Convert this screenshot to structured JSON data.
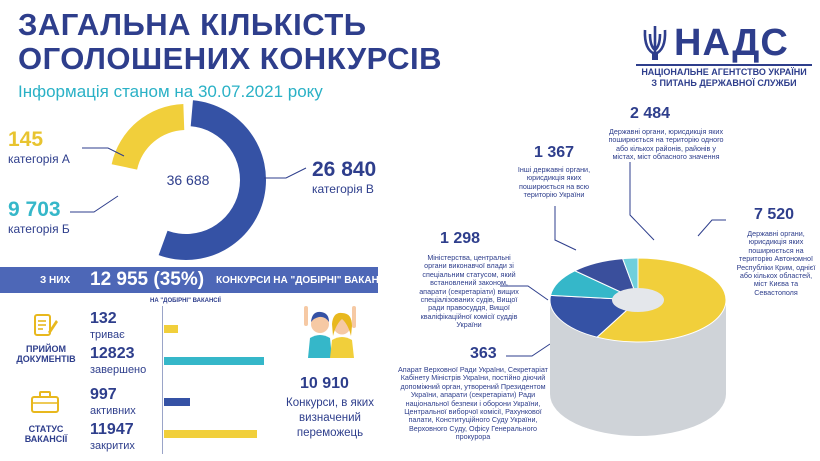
{
  "header": {
    "title_line1": "ЗАГАЛЬНА КІЛЬКІСТЬ",
    "title_line2": "ОГОЛОШЕНИХ КОНКУРСІВ",
    "subtitle": "Інформація станом на 30.07.2021 року"
  },
  "logo": {
    "name": "НАДС",
    "line1": "НАЦІОНАЛЬНЕ АГЕНТСТВО УКРАЇНИ",
    "line2": "З ПИТАНЬ ДЕРЖАВНОЇ СЛУЖБИ"
  },
  "donut": {
    "total": "36 688",
    "categories": [
      {
        "value_text": "145",
        "label": "категорія А",
        "value": 145,
        "color": "#f1cf3b"
      },
      {
        "value_text": "9 703",
        "label": "категорія Б",
        "value": 9703,
        "color": "#35b7c9"
      },
      {
        "value_text": "26 840",
        "label": "категорія В",
        "value": 26840,
        "color": "#3552a5"
      }
    ]
  },
  "band": {
    "prefix": "з них",
    "value": "12 955 (35%)",
    "text": "конкурси на \"добірні\" вакансії"
  },
  "left_bottom": {
    "header_small": "на \"добірні\" вакансії",
    "intake": {
      "label_line1": "ПРИЙОМ",
      "label_line2": "ДОКУМЕНТІВ",
      "rows": [
        {
          "value": "132",
          "label": "триває",
          "bar_fraction": 0.14,
          "color": "#f1cf3b"
        },
        {
          "value": "12823",
          "label": "завершено",
          "bar_fraction": 1.0,
          "color": "#35b7c9"
        }
      ]
    },
    "status": {
      "label_line1": "СТАТУС",
      "label_line2": "ВАКАНСІЇ",
      "rows": [
        {
          "value": "997",
          "label": "активних",
          "bar_fraction": 0.26,
          "color": "#3552a5"
        },
        {
          "value": "11947",
          "label": "закритих",
          "bar_fraction": 0.93,
          "color": "#f1cf3b"
        }
      ]
    },
    "winners": {
      "value": "10 910",
      "text_line1": "Конкурси, в яких",
      "text_line2": "визначений",
      "text_line3": "переможець"
    }
  },
  "pie3d": {
    "segments": [
      {
        "value_text": "7 520",
        "value": 7520,
        "color": "#f1cf3b",
        "desc": "Державні органи, юрисдикція яких поширюється на територію Автономної Республіки Крим, однієї або кількох областей, міст Києва та Севастополя"
      },
      {
        "value_text": "2 484",
        "value": 2484,
        "color": "#3552a5",
        "desc": "Державні органи, юрисдикція яких поширюється на територію одного або кількох районів, районів у містах, міст обласного значення"
      },
      {
        "value_text": "1 367",
        "value": 1367,
        "color": "#35b7c9",
        "desc": "Інші державні органи, юрисдикція яких поширюється на всю територію України"
      },
      {
        "value_text": "1 298",
        "value": 1298,
        "color": "#3a4f9c",
        "desc": "Міністерства, центральні органи виконавчої влади зі спеціальним статусом, який встановлений законом, апарати (секретаріати) вищих спеціалізованих судів, Вищої ради правосуддя, Вищої кваліфікаційної комісії суддів України"
      },
      {
        "value_text": "363",
        "value": 363,
        "color": "#6fcfdc",
        "desc": "Апарат Верховної Ради України, Секретаріат Кабінету Міністрів України, постійно діючий допоміжний орган, утворений Президентом України, апарати (секретаріати) Ради національної безпеки і оборони України, Центральної виборчої комісії, Рахункової палати, Конституційного Суду України, Верховного Суду, Офісу Генерального прокурора"
      }
    ]
  }
}
